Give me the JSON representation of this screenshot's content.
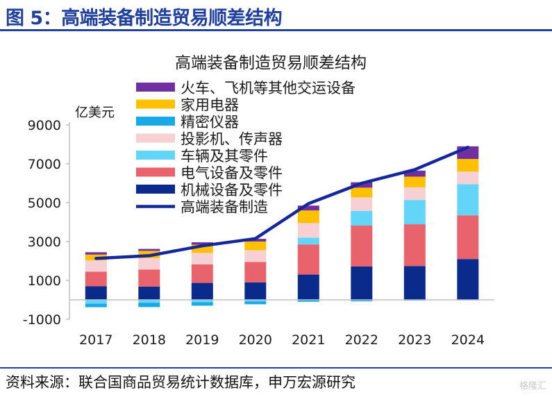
{
  "figure_title": "图 5：高端装备制造贸易顺差结构",
  "source": "资料来源：联合国商品贸易统计数据库，申万宏源研究",
  "watermark": "格隆汇",
  "chart_data": {
    "type": "bar",
    "stacked": true,
    "title": "高端装备制造贸易顺差结构",
    "ylabel": "亿美元",
    "xlabel": "",
    "ylim": [
      -1000,
      9000
    ],
    "yticks": [
      -1000,
      1000,
      3000,
      5000,
      7000,
      9000
    ],
    "grid": false,
    "legend_position": "top-left",
    "categories": [
      "2017",
      "2018",
      "2019",
      "2020",
      "2021",
      "2022",
      "2023",
      "2024"
    ],
    "series": [
      {
        "name": "机械设备及零件",
        "color": "#0a2a8c",
        "values": [
          700,
          680,
          870,
          900,
          1300,
          1720,
          1740,
          2100
        ]
      },
      {
        "name": "电气设备及零件",
        "color": "#e8636b",
        "values": [
          750,
          880,
          950,
          1050,
          1550,
          2100,
          2150,
          2250
        ]
      },
      {
        "name": "车辆及其零件",
        "color": "#63d5f9",
        "values": [
          -200,
          -150,
          -120,
          -80,
          350,
          750,
          1250,
          1600
        ]
      },
      {
        "name": "投影机、传声器",
        "color": "#f6d0d2",
        "values": [
          580,
          580,
          600,
          600,
          750,
          700,
          650,
          650
        ]
      },
      {
        "name": "精密仪器",
        "color": "#19a9e6",
        "values": [
          -180,
          -220,
          -180,
          -150,
          -100,
          -80,
          -40,
          -30
        ]
      },
      {
        "name": "家用电器",
        "color": "#ffc000",
        "values": [
          300,
          380,
          420,
          450,
          650,
          500,
          550,
          650
        ]
      },
      {
        "name": "火车、飞机等其他交运设备",
        "color": "#7030a0",
        "values": [
          120,
          100,
          120,
          140,
          250,
          280,
          310,
          650
        ]
      }
    ],
    "line": {
      "name": "高端装备制造",
      "color": "#14279b",
      "values": [
        2130,
        2270,
        2780,
        3150,
        4950,
        6000,
        6700,
        7850
      ]
    }
  }
}
